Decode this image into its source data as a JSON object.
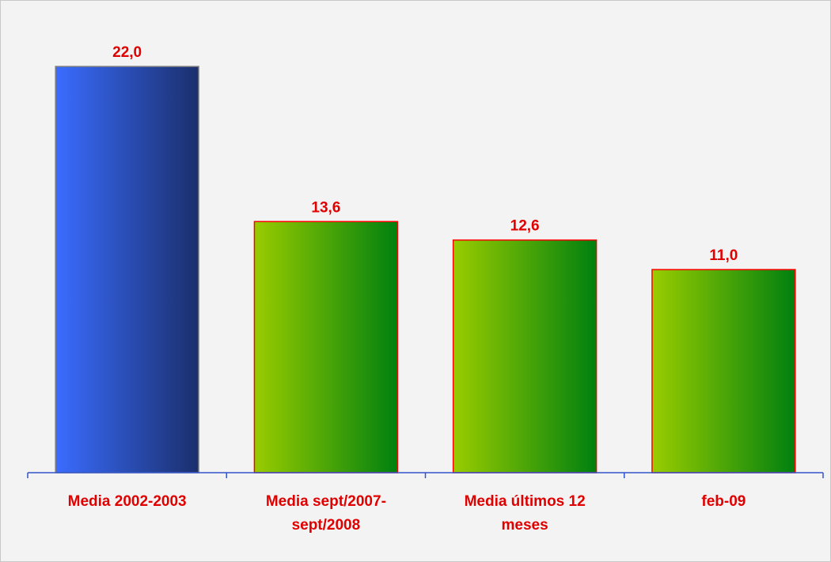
{
  "chart_data": {
    "type": "bar",
    "categories": [
      "Media 2002-2003",
      "Media sept/2007-sept/2008",
      "Media últimos 12 meses",
      "feb-09"
    ],
    "values": [
      22.0,
      13.6,
      12.6,
      11.0
    ],
    "value_labels": [
      "22,0",
      "13,6",
      "12,6",
      "11,0"
    ],
    "colors": [
      "#3a6cff",
      "#99cc00",
      "#99cc00",
      "#99cc00"
    ],
    "colors_end": [
      "#1b2f6c",
      "#00800f",
      "#00800f",
      "#00800f"
    ],
    "edge_colors": [
      "#808080",
      "#ff0000",
      "#ff0000",
      "#ff0000"
    ],
    "label_color": "#e00000",
    "axis_color": "#3355cc",
    "ylim": [
      0,
      25
    ]
  }
}
